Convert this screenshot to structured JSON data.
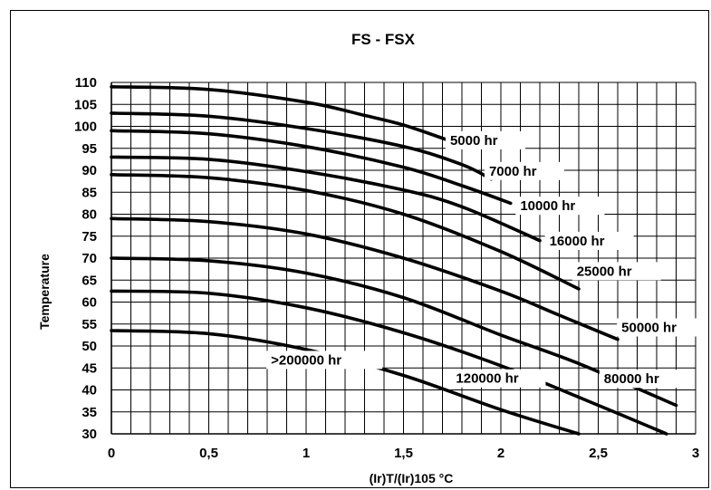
{
  "chart_data": {
    "type": "line",
    "title": "FS - FSX",
    "xlabel": "(Ir)T/(Ir)105 °C",
    "ylabel": "Temperature",
    "xlim": [
      0,
      3
    ],
    "ylim": [
      30,
      110
    ],
    "x_ticks": [
      "0",
      "0,5",
      "1",
      "1,5",
      "2",
      "2,5",
      "3"
    ],
    "y_ticks": [
      "30",
      "35",
      "40",
      "45",
      "50",
      "55",
      "60",
      "65",
      "70",
      "75",
      "80",
      "85",
      "90",
      "95",
      "100",
      "105",
      "110"
    ],
    "grid": true,
    "series": [
      {
        "name": "5000 hr",
        "x": [
          0,
          0.5,
          1.0,
          1.3,
          1.5,
          1.72
        ],
        "y": [
          109,
          108.4,
          105.5,
          102.5,
          100.3,
          97
        ]
      },
      {
        "name": "7000 hr",
        "x": [
          0,
          0.5,
          1.0,
          1.5,
          1.8,
          1.95
        ],
        "y": [
          103,
          102.3,
          99.5,
          95.4,
          91.3,
          88
        ]
      },
      {
        "name": "10000 hr",
        "x": [
          0,
          0.5,
          1.0,
          1.5,
          1.8,
          2.05
        ],
        "y": [
          99,
          98.3,
          95.4,
          90.7,
          86.5,
          82.5
        ]
      },
      {
        "name": "16000 hr",
        "x": [
          0,
          0.5,
          1.0,
          1.5,
          1.8,
          2.2
        ],
        "y": [
          93,
          92.5,
          89.7,
          85.5,
          81.7,
          74
        ]
      },
      {
        "name": "25000 hr",
        "x": [
          0,
          0.5,
          1.0,
          1.5,
          2.0,
          2.4
        ],
        "y": [
          89,
          88.3,
          85.4,
          80,
          71.5,
          63
        ]
      },
      {
        "name": "50000 hr",
        "x": [
          0,
          0.5,
          1.0,
          1.5,
          2.0,
          2.3,
          2.6
        ],
        "y": [
          79,
          78.3,
          75.5,
          70,
          62.5,
          57,
          51.5
        ]
      },
      {
        "name": "80000 hr",
        "x": [
          0,
          0.5,
          1.0,
          1.5,
          2.0,
          2.4,
          2.9
        ],
        "y": [
          70,
          69.4,
          66.6,
          61,
          52.5,
          46,
          36.5
        ]
      },
      {
        "name": "120000 hr",
        "x": [
          0,
          0.5,
          1.0,
          1.5,
          2.0,
          2.5,
          2.85
        ],
        "y": [
          62.5,
          62,
          58.7,
          53,
          45.5,
          36.5,
          30
        ]
      },
      {
        "name": ">200000 hr",
        "x": [
          0,
          0.5,
          1.0,
          1.5,
          2.0,
          2.4
        ],
        "y": [
          53.5,
          52.8,
          49.2,
          43.3,
          35.5,
          30
        ]
      }
    ]
  }
}
